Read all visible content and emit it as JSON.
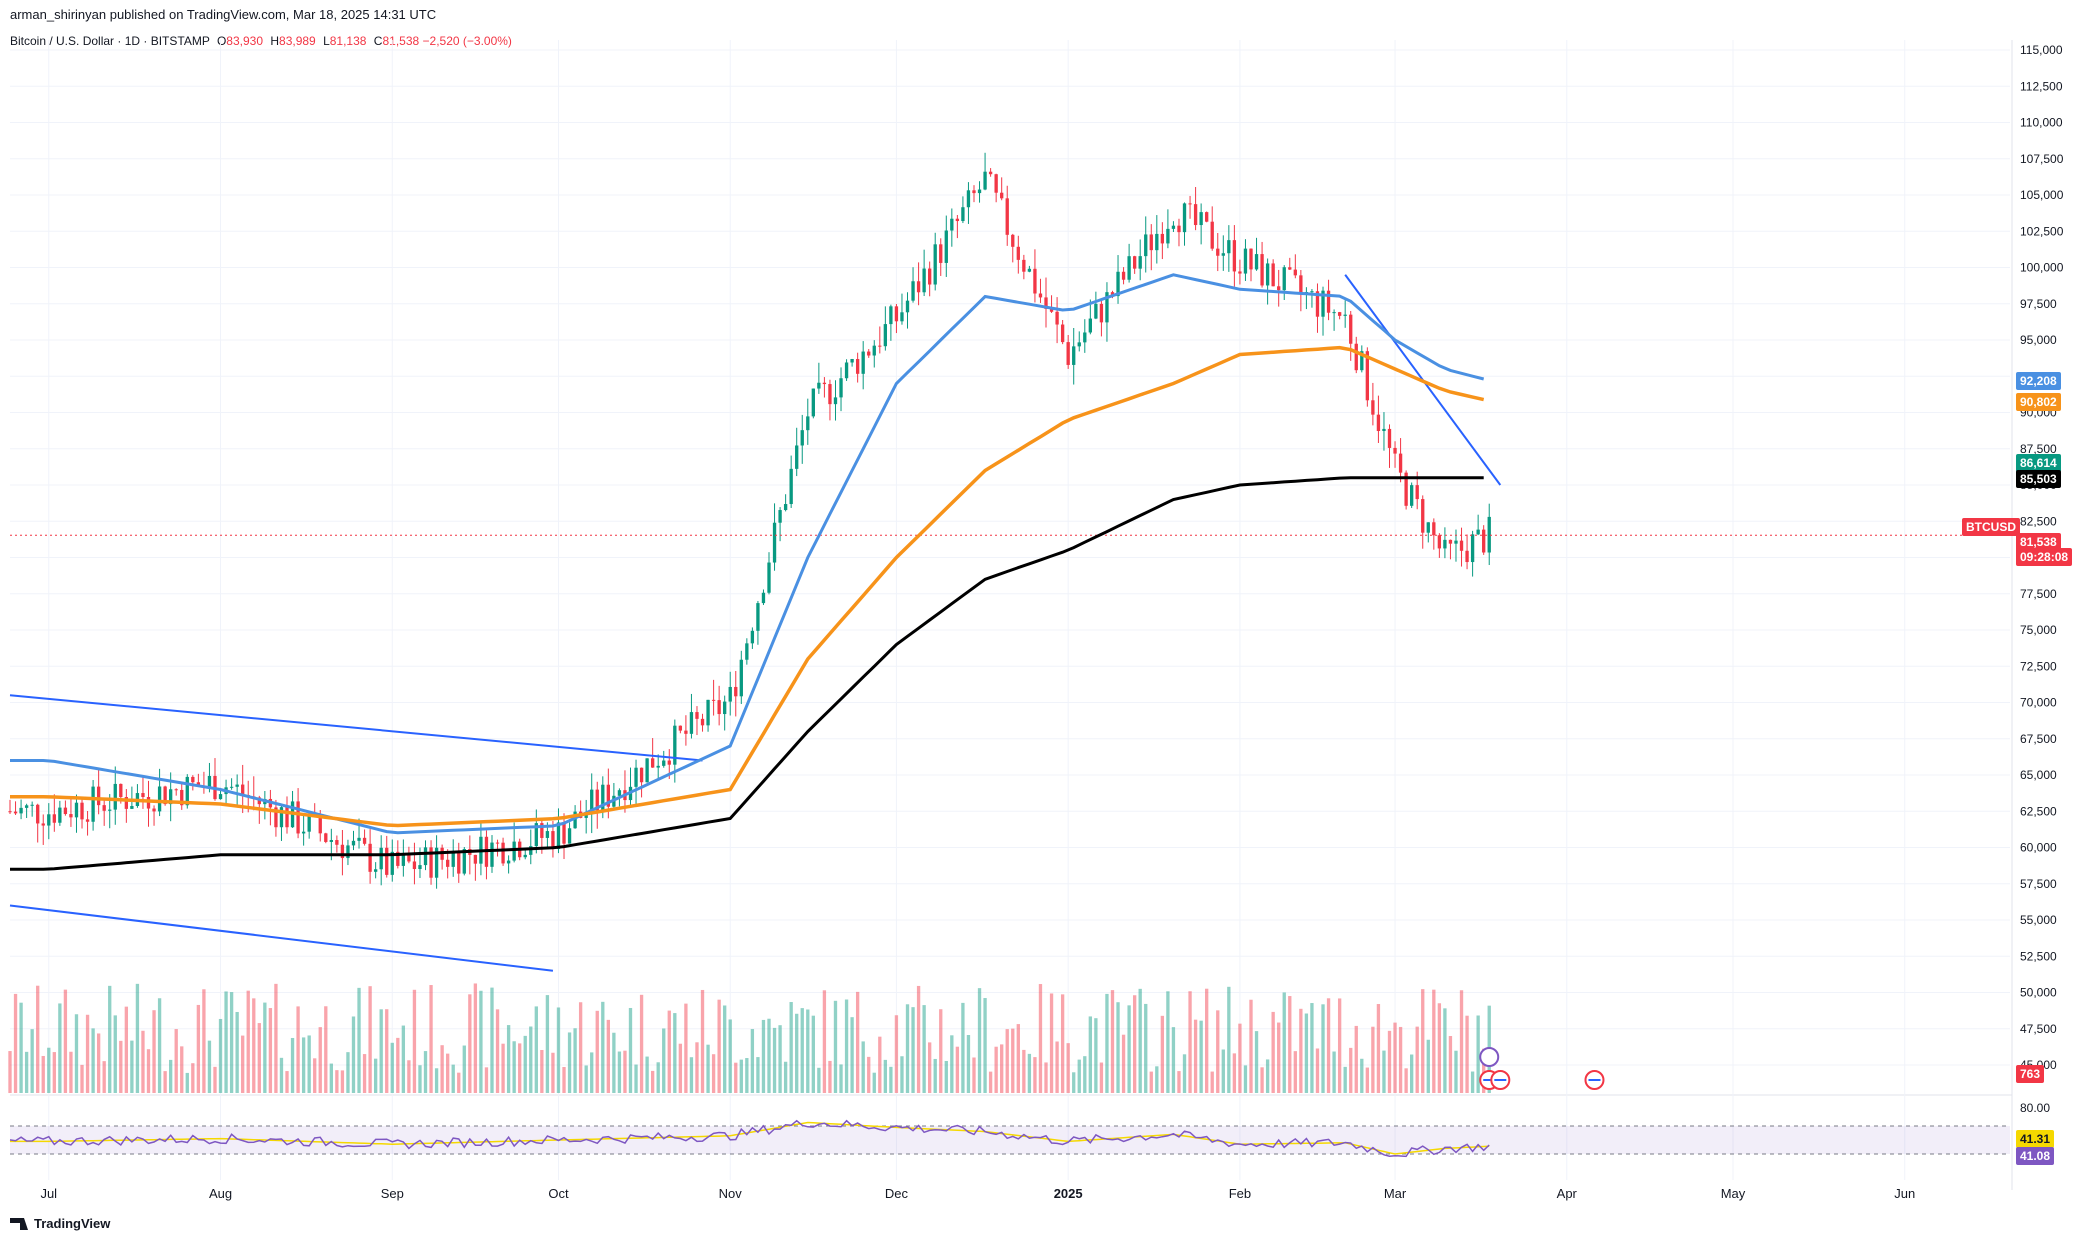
{
  "header": {
    "published_by": "arman_shirinyan published on TradingView.com, Mar 18, 2025 14:31 UTC",
    "symbol_title": "Bitcoin / U.S. Dollar · 1D · BITSTAMP",
    "open_label": "O",
    "open_value": "83,930",
    "high_label": "H",
    "high_value": "83,989",
    "low_label": "L",
    "low_value": "81,138",
    "close_label": "C",
    "close_value": "81,538",
    "change": "−2,520 (−3.00%)"
  },
  "price_axis": {
    "ticks": [
      "115,000",
      "112,500",
      "110,000",
      "107,500",
      "105,000",
      "102,500",
      "100,000",
      "97,500",
      "95,000",
      "92,500",
      "90,000",
      "87,500",
      "85,000",
      "82,500",
      "80,000",
      "77,500",
      "75,000",
      "72,500",
      "70,000",
      "67,500",
      "65,000",
      "62,500",
      "60,000",
      "57,500",
      "55,000",
      "52,500",
      "50,000",
      "47,500",
      "45,000"
    ],
    "badges": [
      {
        "text": "92,208",
        "color": "#4a90e2"
      },
      {
        "text": "90,802",
        "color": "#f7931a"
      },
      {
        "text": "86,614",
        "color": "#089981"
      },
      {
        "text": "85,503",
        "color": "#000000"
      },
      {
        "text": "BTCUSD",
        "color": "#f23645"
      },
      {
        "text": "81,538",
        "color": "#f23645"
      },
      {
        "text": "09:28:08",
        "color": "#f23645"
      },
      {
        "text": "763",
        "color": "#f23645"
      }
    ]
  },
  "rsi_axis": {
    "top_tick": "80.00",
    "badges": [
      {
        "text": "41.31",
        "color": "#f5d800"
      },
      {
        "text": "41.08",
        "color": "#7e57c2"
      }
    ]
  },
  "time_axis": {
    "labels": [
      "Jul",
      "Aug",
      "Sep",
      "Oct",
      "Nov",
      "Dec",
      "2025",
      "Feb",
      "Mar",
      "Apr",
      "May",
      "Jun"
    ]
  },
  "footer": {
    "brand": "TradingView"
  },
  "chart_data": {
    "type": "line",
    "series_kind": "candlestick",
    "symbol": "BTCUSD",
    "timeframe": "1D",
    "ylim": [
      45000,
      116000
    ],
    "x": [
      "2024-07-01",
      "2024-08-01",
      "2024-09-01",
      "2024-10-01",
      "2024-11-01",
      "2024-11-15",
      "2024-12-01",
      "2024-12-17",
      "2025-01-01",
      "2025-01-20",
      "2025-02-01",
      "2025-02-20",
      "2025-03-01",
      "2025-03-10",
      "2025-03-18"
    ],
    "series": [
      {
        "values": [
          62500,
          64500,
          58500,
          61000,
          70200,
          90000,
          96500,
          106000,
          94000,
          104000,
          100500,
          96500,
          86000,
          80000,
          81538
        ]
      },
      {
        "values": [
          66000,
          64000,
          61000,
          61500,
          67000,
          80000,
          92000,
          98000,
          97000,
          99500,
          98500,
          98000,
          95000,
          93000,
          92208
        ]
      },
      {
        "values": [
          63500,
          63000,
          61500,
          62000,
          64000,
          73000,
          80000,
          86000,
          89500,
          92000,
          94000,
          94500,
          93000,
          91500,
          90802
        ]
      },
      {
        "values": [
          58500,
          59500,
          59500,
          60000,
          62000,
          68000,
          74000,
          78500,
          80500,
          84000,
          85000,
          85500,
          85500,
          85500,
          85503
        ]
      }
    ],
    "rsi": {
      "ylim": [
        0,
        100
      ],
      "values": [
        48,
        52,
        44,
        50,
        56,
        75,
        68,
        62,
        48,
        58,
        44,
        46,
        30,
        38,
        41.08
      ],
      "ma": 41.31
    }
  }
}
